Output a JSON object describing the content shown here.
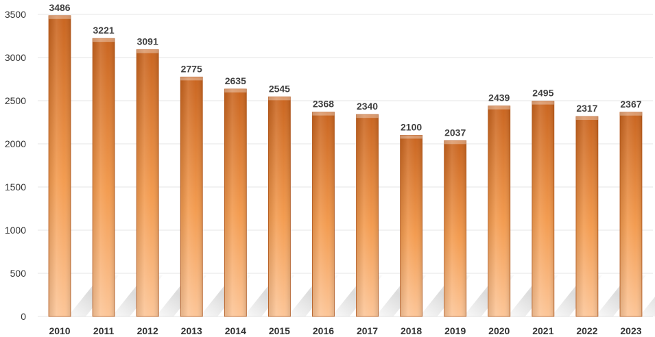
{
  "chart_data": {
    "type": "bar",
    "categories": [
      "2010",
      "2011",
      "2012",
      "2013",
      "2014",
      "2015",
      "2016",
      "2017",
      "2018",
      "2019",
      "2020",
      "2021",
      "2022",
      "2023"
    ],
    "values": [
      3486,
      3221,
      3091,
      2775,
      2635,
      2545,
      2368,
      2340,
      2100,
      2037,
      2439,
      2495,
      2317,
      2367
    ],
    "ylim": [
      0,
      3500
    ],
    "yticks": [
      0,
      500,
      1000,
      1500,
      2000,
      2500,
      3000,
      3500
    ],
    "grid": true,
    "data_labels": true,
    "colors": {
      "bar_top": "#c8621c",
      "bar_mid": "#f39a4d",
      "bar_bottom": "#fcc597",
      "grid": "#e6e6e6"
    }
  }
}
